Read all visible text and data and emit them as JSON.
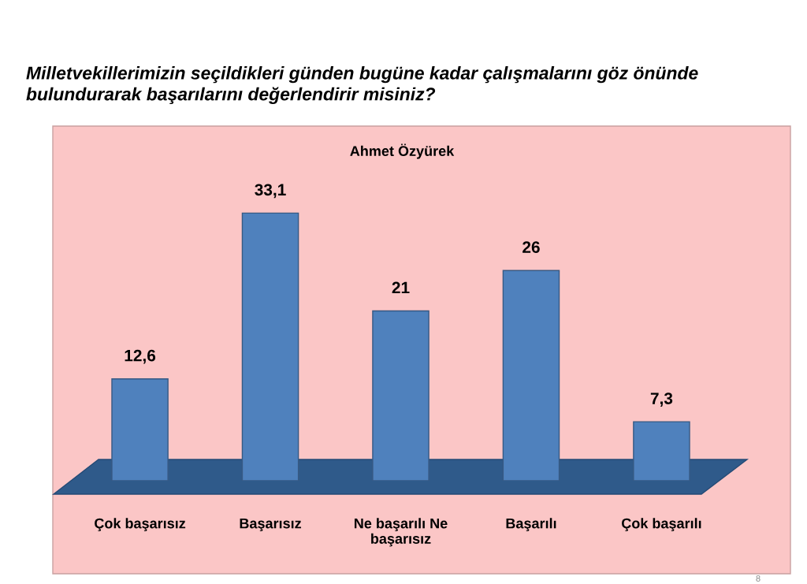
{
  "chart_data": {
    "type": "bar",
    "title": "Milletvekillerimizin seçildikleri günden bugüne kadar çalışmalarını göz önünde bulundurarak başarılarını değerlendirir misiniz?",
    "subtitle": "Ahmet Özyürek",
    "categories": [
      "Çok başarısız",
      "Başarısız",
      "Ne başarılı Ne başarısız",
      "Başarılı",
      "Çok başarılı"
    ],
    "values": [
      12.6,
      33.1,
      21,
      26,
      7.3
    ],
    "value_labels": [
      "12,6",
      "33,1",
      "21",
      "26",
      "7,3"
    ],
    "color": "#4f81bd",
    "annotations": [
      "8"
    ]
  }
}
